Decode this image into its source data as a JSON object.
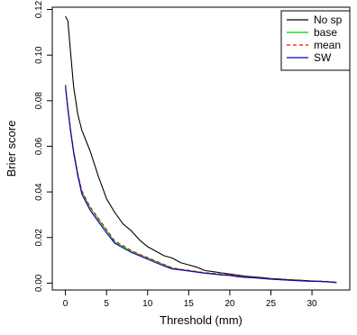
{
  "chart_data": {
    "type": "line",
    "title": "",
    "xlabel": "Threshold (mm)",
    "ylabel": "Brier score",
    "xlim": [
      -1.6,
      34.6
    ],
    "ylim": [
      -0.003,
      0.121
    ],
    "x_ticks": [
      0,
      5,
      10,
      15,
      20,
      25,
      30
    ],
    "x_tick_labels": [
      "0",
      "5",
      "10",
      "15",
      "20",
      "25",
      "30"
    ],
    "y_ticks": [
      0.0,
      0.02,
      0.04,
      0.06,
      0.08,
      0.1,
      0.12
    ],
    "y_tick_labels": [
      "0.00",
      "0.02",
      "0.04",
      "0.06",
      "0.08",
      "0.10",
      "0.12"
    ],
    "grid": false,
    "legend_position": "top-right",
    "series": [
      {
        "name": "No sp",
        "color": "#000000",
        "dash": "solid",
        "x": [
          0,
          0.3,
          0.6,
          1,
          1.5,
          2,
          3,
          4,
          5,
          6,
          7,
          8,
          9,
          10,
          11,
          12,
          13,
          14,
          15,
          16,
          17,
          18,
          19,
          20,
          21,
          22,
          23,
          24,
          25,
          26,
          27,
          28,
          29,
          30,
          31,
          32,
          33
        ],
        "y": [
          0.117,
          0.115,
          0.102,
          0.086,
          0.074,
          0.067,
          0.058,
          0.047,
          0.037,
          0.031,
          0.026,
          0.023,
          0.019,
          0.016,
          0.014,
          0.012,
          0.011,
          0.009,
          0.008,
          0.007,
          0.0055,
          0.005,
          0.0045,
          0.004,
          0.0035,
          0.003,
          0.0027,
          0.0024,
          0.002,
          0.0018,
          0.0016,
          0.0014,
          0.0012,
          0.001,
          0.0008,
          0.0006,
          0.0003
        ]
      },
      {
        "name": "base",
        "color": "#00cc00",
        "dash": "solid",
        "x": [
          0,
          0.3,
          0.6,
          1,
          1.5,
          2,
          3,
          4,
          5,
          6,
          7,
          8,
          9,
          10,
          11,
          12,
          13,
          14,
          15,
          16,
          17,
          18,
          19,
          20,
          21,
          22,
          23,
          24,
          25,
          26,
          27,
          28,
          29,
          30,
          31,
          32,
          33
        ],
        "y": [
          0.087,
          0.077,
          0.068,
          0.058,
          0.048,
          0.04,
          0.033,
          0.028,
          0.023,
          0.018,
          0.016,
          0.014,
          0.0125,
          0.011,
          0.0095,
          0.008,
          0.0065,
          0.006,
          0.0055,
          0.005,
          0.0045,
          0.0042,
          0.0038,
          0.0035,
          0.003,
          0.0026,
          0.0024,
          0.0021,
          0.0018,
          0.0016,
          0.0014,
          0.0012,
          0.001,
          0.0009,
          0.0008,
          0.0006,
          0.0003
        ]
      },
      {
        "name": "mean",
        "color": "#ff0000",
        "dash": "dashed",
        "x": [
          0,
          0.3,
          0.6,
          1,
          1.5,
          2,
          3,
          4,
          5,
          6,
          7,
          8,
          9,
          10,
          11,
          12,
          13,
          14,
          15,
          16,
          17,
          18,
          19,
          20,
          21,
          22,
          23,
          24,
          25,
          26,
          27,
          28,
          29,
          30,
          31,
          32,
          33
        ],
        "y": [
          0.087,
          0.077,
          0.068,
          0.058,
          0.048,
          0.0405,
          0.0335,
          0.0285,
          0.0235,
          0.0185,
          0.0165,
          0.0143,
          0.0127,
          0.0112,
          0.0097,
          0.0082,
          0.0067,
          0.0061,
          0.0056,
          0.0051,
          0.0046,
          0.0043,
          0.0039,
          0.0036,
          0.0031,
          0.0027,
          0.0025,
          0.0022,
          0.0019,
          0.0017,
          0.0015,
          0.0013,
          0.0011,
          0.001,
          0.0009,
          0.0007,
          0.0004
        ]
      },
      {
        "name": "SW",
        "color": "#0000cc",
        "dash": "solid",
        "x": [
          0,
          0.3,
          0.6,
          1,
          1.5,
          2,
          3,
          4,
          5,
          6,
          7,
          8,
          9,
          10,
          11,
          12,
          13,
          14,
          15,
          16,
          17,
          18,
          19,
          20,
          21,
          22,
          23,
          24,
          25,
          26,
          27,
          28,
          29,
          30,
          31,
          32,
          33
        ],
        "y": [
          0.086,
          0.076,
          0.067,
          0.057,
          0.047,
          0.039,
          0.032,
          0.027,
          0.022,
          0.0175,
          0.0155,
          0.0135,
          0.012,
          0.0105,
          0.009,
          0.0075,
          0.0062,
          0.0058,
          0.0053,
          0.0048,
          0.0043,
          0.004,
          0.0036,
          0.0033,
          0.0028,
          0.0025,
          0.0023,
          0.002,
          0.0017,
          0.0015,
          0.0013,
          0.0011,
          0.0009,
          0.0008,
          0.0007,
          0.0005,
          0.0002
        ]
      }
    ]
  }
}
